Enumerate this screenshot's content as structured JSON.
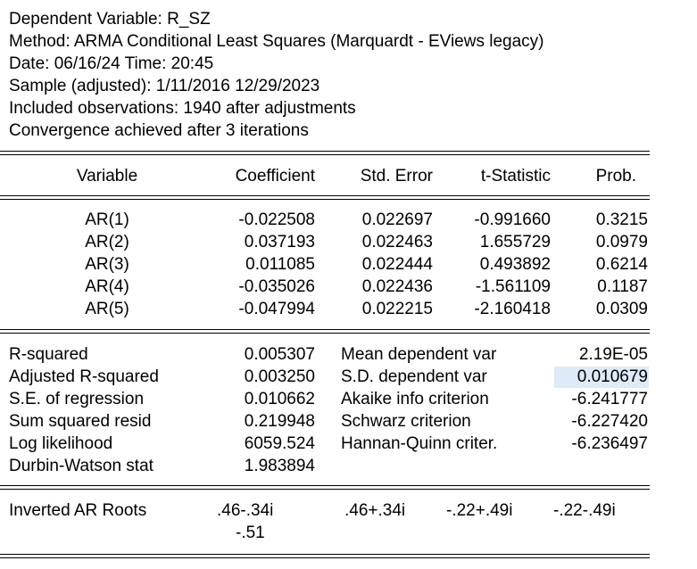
{
  "header": [
    "Dependent Variable: R_SZ",
    "Method: ARMA Conditional Least Squares (Marquardt - EViews legacy)",
    "Date: 06/16/24   Time: 20:45",
    "Sample (adjusted): 1/11/2016 12/29/2023",
    "Included observations: 1940 after adjustments",
    "Convergence achieved after 3 iterations"
  ],
  "columns": [
    "Variable",
    "Coefficient",
    "Std. Error",
    "t-Statistic",
    "Prob."
  ],
  "rows": [
    {
      "variable": "AR(1)",
      "coefficient": "-0.022508",
      "std_error": "0.022697",
      "t_statistic": "-0.991660",
      "prob": "0.3215"
    },
    {
      "variable": "AR(2)",
      "coefficient": "0.037193",
      "std_error": "0.022463",
      "t_statistic": "1.655729",
      "prob": "0.0979"
    },
    {
      "variable": "AR(3)",
      "coefficient": "0.011085",
      "std_error": "0.022444",
      "t_statistic": "0.493892",
      "prob": "0.6214"
    },
    {
      "variable": "AR(4)",
      "coefficient": "-0.035026",
      "std_error": "0.022436",
      "t_statistic": "-1.561109",
      "prob": "0.1187"
    },
    {
      "variable": "AR(5)",
      "coefficient": "-0.047994",
      "std_error": "0.022215",
      "t_statistic": "-2.160418",
      "prob": "0.0309"
    }
  ],
  "stats": [
    {
      "label": "R-squared",
      "value": "0.005307",
      "label2": "Mean dependent var",
      "value2": "2.19E-05"
    },
    {
      "label": "Adjusted R-squared",
      "value": "0.003250",
      "label2": "S.D. dependent var",
      "value2": "0.010679"
    },
    {
      "label": "S.E. of regression",
      "value": "0.010662",
      "label2": "Akaike info criterion",
      "value2": "-6.241777"
    },
    {
      "label": "Sum squared resid",
      "value": "0.219948",
      "label2": "Schwarz criterion",
      "value2": "-6.227420"
    },
    {
      "label": "Log likelihood",
      "value": "6059.524",
      "label2": "Hannan-Quinn criter.",
      "value2": "-6.236497"
    },
    {
      "label": "Durbin-Watson stat",
      "value": "1.983894",
      "label2": "",
      "value2": ""
    }
  ],
  "roots": {
    "label": "Inverted AR Roots",
    "values": [
      ".46-.34i",
      ".46+.34i",
      "-.22+.49i",
      "-.22-.49i",
      "-.51"
    ]
  },
  "selection": {
    "color": "#dcebf7"
  }
}
